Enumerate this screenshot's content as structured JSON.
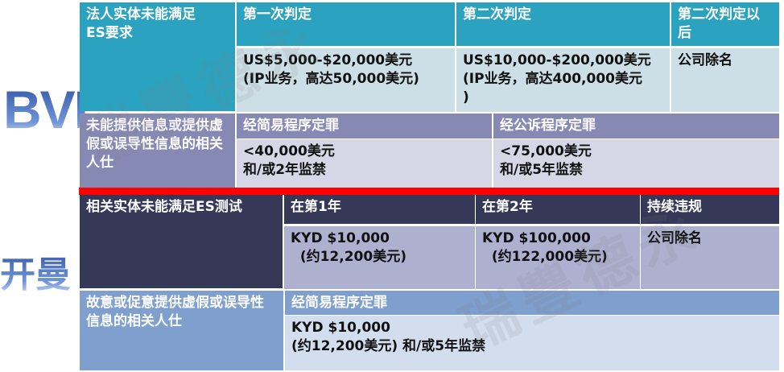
{
  "watermark": "瑞豐德永",
  "bvi": {
    "label": "BVI",
    "row1": {
      "title": "法人实体未能满足\nES要求",
      "headers": [
        "第一次判定",
        "第二次判定",
        "第二次判定以后"
      ],
      "values": [
        "US$5,000-$20,000美元\n(IP业务，高达50,000美元)",
        "US$10,000-$200,000美元\n(IP业务，高达400,000美元\n)",
        "公司除名"
      ]
    },
    "row2": {
      "title": "未能提供信息或提供虚假或误导性信息的相关人仕",
      "headers": [
        "经简易程序定罪",
        "经公诉程序定罪"
      ],
      "values": [
        "<40,000美元\n和/或2年监禁",
        "<75,000美元\n和/或5年监禁"
      ]
    }
  },
  "cayman": {
    "label": "开曼",
    "row1": {
      "title": "相关实体未能满足ES测试",
      "headers": [
        "在第1年",
        "在第2年",
        "持续违规"
      ],
      "values": [
        "KYD $10,000\n  (约12,200美元)",
        "KYD $100,000\n  (约122,000美元)",
        "公司除名"
      ]
    },
    "row2": {
      "title": "故意或促意提供虚假或误导性信息的相关人仕",
      "headers": [
        "经简易程序定罪"
      ],
      "values": [
        "KYD $10,000\n(约12,200美元) 和/或5年监禁"
      ]
    }
  },
  "colors": {
    "divider": "#ff0000",
    "teal": "#2ba2bf",
    "navy": "#363858"
  }
}
